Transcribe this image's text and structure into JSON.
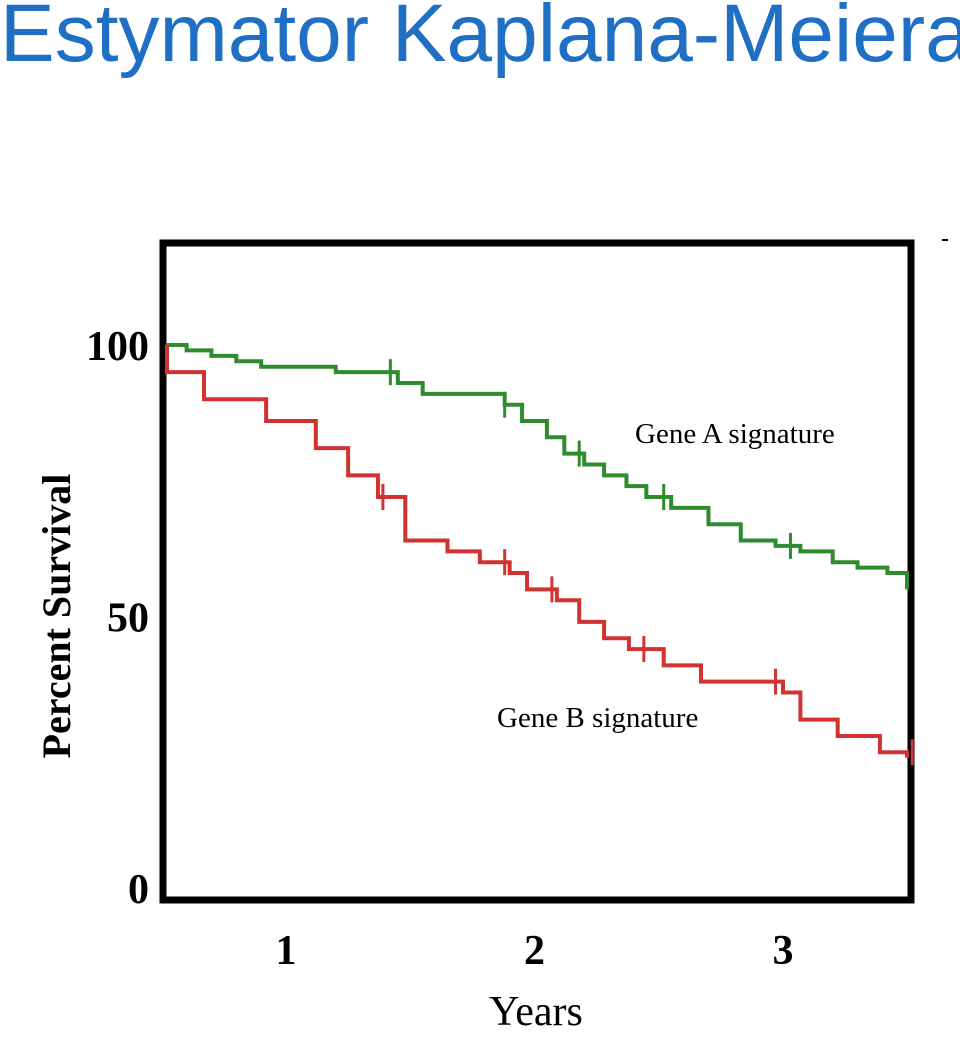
{
  "page": {
    "title": "Estymator Kaplana-Meiera",
    "title_color": "#1f6fc4"
  },
  "chart_data": {
    "type": "line",
    "step": true,
    "xlabel": "Years",
    "ylabel": "Percent Survival",
    "xticks": [
      1,
      2,
      3
    ],
    "yticks": [
      0,
      50,
      100
    ],
    "xlim": [
      0.3,
      3.6
    ],
    "ylim": [
      0,
      100
    ],
    "grid": false,
    "frame_color": "#000000",
    "series": [
      {
        "name": "Gene A signature",
        "color": "#2e8b2e",
        "x": [
          0.3,
          0.5,
          0.6,
          0.7,
          0.8,
          0.9,
          1.05,
          1.2,
          1.35,
          1.45,
          1.55,
          1.7,
          1.88,
          1.95,
          2.05,
          2.12,
          2.2,
          2.28,
          2.37,
          2.45,
          2.55,
          2.7,
          2.83,
          2.97,
          3.07,
          3.2,
          3.3,
          3.42,
          3.5,
          3.6
        ],
        "y": [
          100,
          100,
          99,
          98,
          97,
          96,
          96,
          95,
          95,
          93,
          91,
          91,
          89,
          86,
          83,
          80,
          78,
          76,
          74,
          72,
          70,
          67,
          64,
          63,
          62,
          60,
          59,
          58,
          56,
          55
        ],
        "censor_x": [
          1.42,
          1.88,
          2.18,
          2.52,
          3.03
        ],
        "label_position": "right, below top of curve"
      },
      {
        "name": "Gene B signature",
        "color": "#d13232",
        "x": [
          0.3,
          0.5,
          0.67,
          0.92,
          1.12,
          1.25,
          1.37,
          1.48,
          1.65,
          1.78,
          1.9,
          1.97,
          2.09,
          2.18,
          2.28,
          2.38,
          2.52,
          2.67,
          2.8,
          3.0,
          3.07,
          3.22,
          3.39,
          3.6
        ],
        "y": [
          100,
          95,
          90,
          86,
          81,
          76,
          72,
          64,
          62,
          60,
          58,
          55,
          53,
          49,
          46,
          44,
          41,
          38,
          38,
          36,
          31,
          28,
          25,
          24
        ],
        "censor_x": [
          1.39,
          1.88,
          2.07,
          2.44,
          2.97,
          3.52
        ],
        "label_position": "lower middle"
      }
    ]
  }
}
